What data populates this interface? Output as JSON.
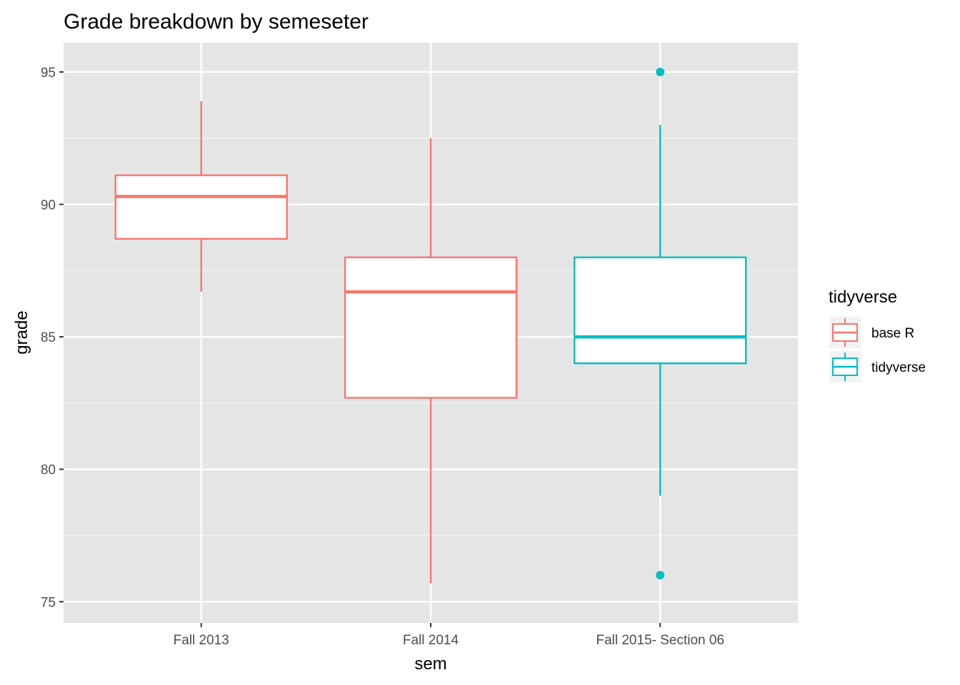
{
  "chart_data": {
    "type": "boxplot",
    "title": "Grade breakdown by semeseter",
    "xlabel": "sem",
    "ylabel": "grade",
    "ylim": [
      74.2,
      96.1
    ],
    "yticks": [
      75,
      80,
      85,
      90,
      95
    ],
    "grid": true,
    "legend": {
      "title": "tidyverse",
      "position": "right",
      "entries": [
        {
          "label": "base R",
          "color": "#F8766D"
        },
        {
          "label": "tidyverse",
          "color": "#00BFC4"
        }
      ]
    },
    "categories": [
      "Fall 2013",
      "Fall 2014",
      "Fall 2015- Section 06"
    ],
    "boxes": [
      {
        "category": "Fall 2013",
        "group": "base R",
        "whisker_low": 86.7,
        "q1": 88.7,
        "median": 90.3,
        "q3": 91.1,
        "whisker_high": 93.9,
        "outliers": []
      },
      {
        "category": "Fall 2014",
        "group": "base R",
        "whisker_low": 75.7,
        "q1": 82.7,
        "median": 86.7,
        "q3": 88.0,
        "whisker_high": 92.5,
        "outliers": []
      },
      {
        "category": "Fall 2015- Section 06",
        "group": "tidyverse",
        "whisker_low": 79.0,
        "q1": 84.0,
        "median": 85.0,
        "q3": 88.0,
        "whisker_high": 93.0,
        "outliers": [
          95.0,
          76.0
        ]
      }
    ]
  }
}
